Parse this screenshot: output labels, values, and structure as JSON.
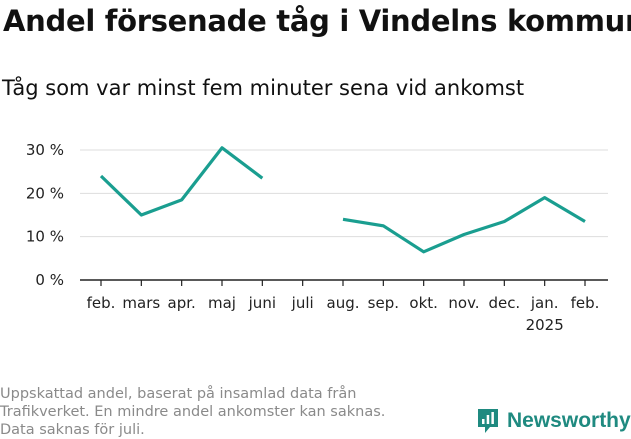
{
  "title": "Andel försenade tåg i Vindelns kommun",
  "subtitle": "Tåg som var minst fem minuter sena vid ankomst",
  "footnote": [
    "Uppskattad andel, baserat på insamlad data från",
    "Trafikverket. En mindre andel ankomster kan saknas.",
    "Data saknas för juli."
  ],
  "brand": {
    "name": "Newsworthy",
    "icon": "newsworthy-logo-icon",
    "color": "#1f8a80"
  },
  "chart_data": {
    "type": "line",
    "title": "Andel försenade tåg i Vindelns kommun",
    "subtitle": "Tåg som var minst fem minuter sena vid ankomst",
    "categories": [
      "feb.",
      "mars",
      "apr.",
      "maj",
      "juni",
      "juli",
      "aug.",
      "sep.",
      "okt.",
      "nov.",
      "dec.",
      "jan.",
      "feb."
    ],
    "category_sublabels": [
      "",
      "",
      "",
      "",
      "",
      "",
      "",
      "",
      "",
      "",
      "",
      "2025",
      ""
    ],
    "series": [
      {
        "values": [
          24,
          15,
          18.5,
          30.5,
          23.5,
          null,
          14,
          12.5,
          6.5,
          10.5,
          13.5,
          19,
          13.5
        ]
      }
    ],
    "line_color": "#1a9e90",
    "ylim": [
      0,
      32
    ],
    "yticks": [
      0,
      10,
      20,
      30
    ],
    "ytick_labels": [
      "0 %",
      "10 %",
      "20 %",
      "30 %"
    ],
    "grid": true,
    "xlabel": "",
    "ylabel": ""
  }
}
